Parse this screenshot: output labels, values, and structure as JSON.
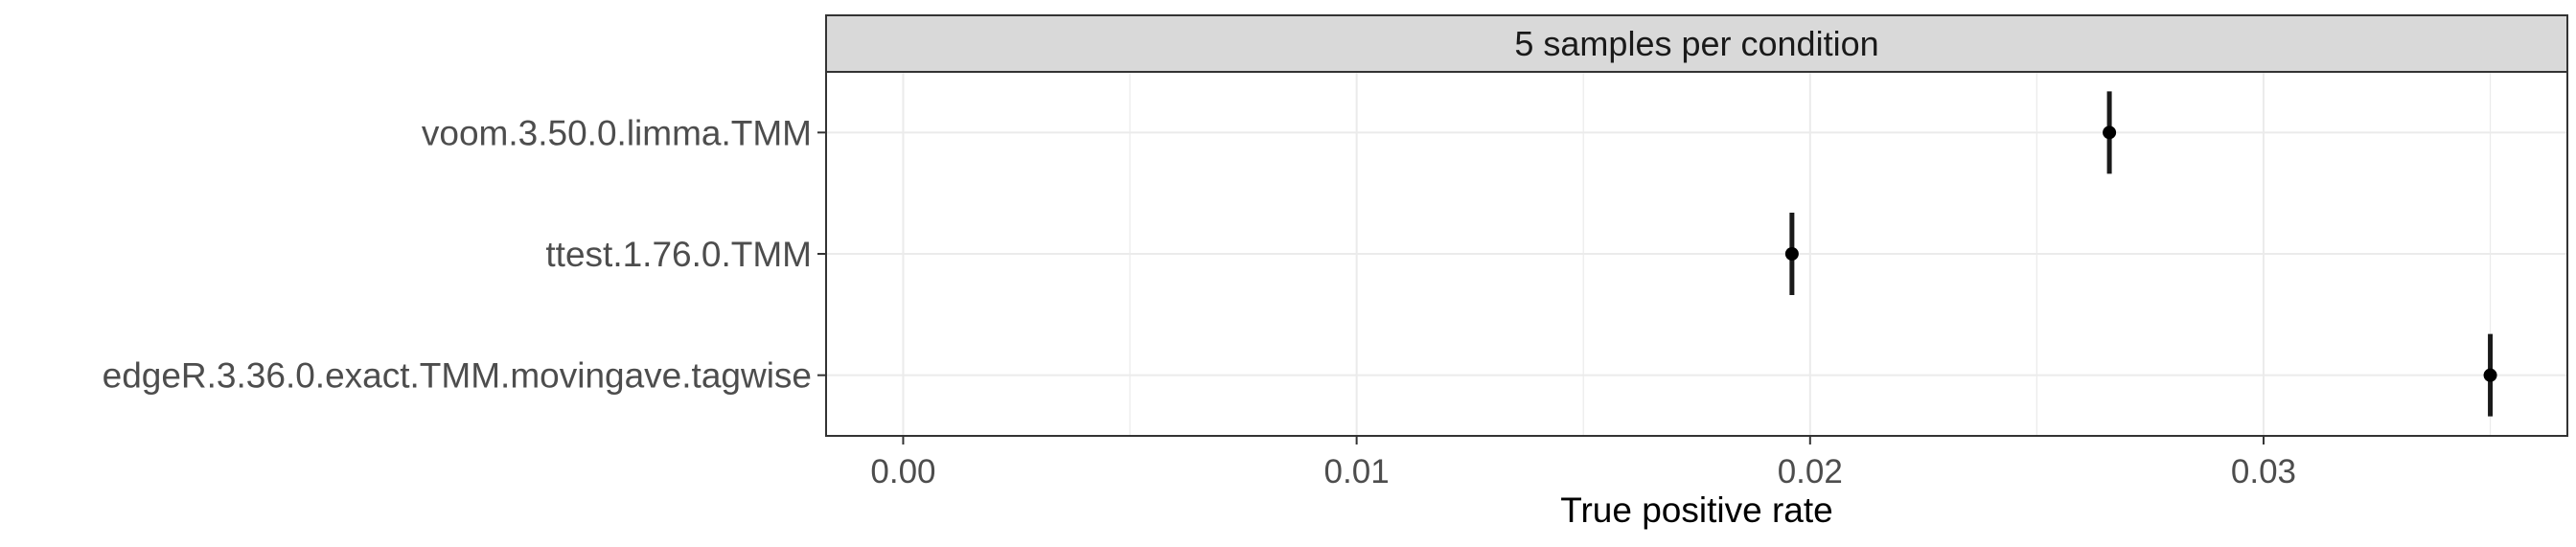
{
  "chart_data": {
    "type": "scatter",
    "title": "",
    "facet_label": "5 samples per condition",
    "xlabel": "True positive rate",
    "ylabel": "",
    "xlim": [
      -0.0017,
      0.0367
    ],
    "x_ticks": [
      0.0,
      0.01,
      0.02,
      0.03
    ],
    "x_tick_labels": [
      "0.00",
      "0.01",
      "0.02",
      "0.03"
    ],
    "categories": [
      "voom.3.50.0.limma.TMM",
      "ttest.1.76.0.TMM",
      "edgeR.3.36.0.exact.TMM.movingave.tagwise"
    ],
    "series": [
      {
        "values": [
          0.0266,
          0.0196,
          0.035
        ],
        "lower": [
          0.0266,
          0.0196,
          0.035
        ],
        "upper": [
          0.0266,
          0.0196,
          0.035
        ]
      }
    ],
    "grid": true,
    "legend": "none",
    "colors": {
      "point": "#000000",
      "errorbar": "#1a1a1a",
      "grid": "#ebebeb",
      "strip_bg": "#d9d9d9",
      "panel_border": "#333333",
      "axis_text": "#4d4d4d",
      "title_text": "#000000"
    }
  }
}
